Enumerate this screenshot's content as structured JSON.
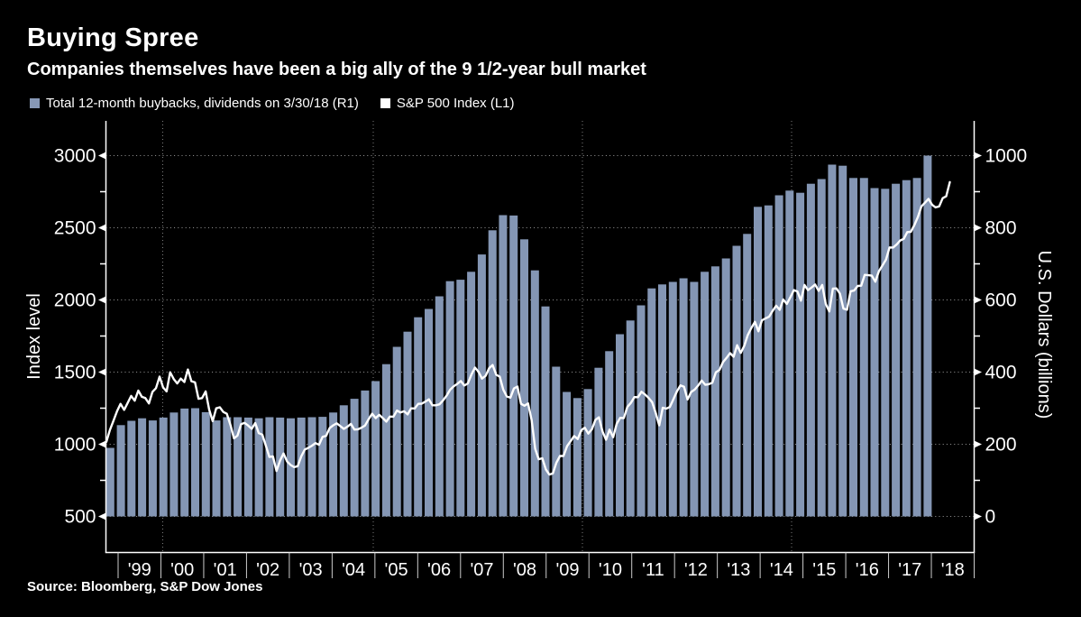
{
  "header": {
    "title": "Buying Spree",
    "subtitle": "Companies themselves have been a big ally of the 9 1/2-year bull market"
  },
  "legend": {
    "items": [
      {
        "label": "Total 12-month buybacks, dividends on 3/30/18 (R1)",
        "swatch_color": "#8798b6"
      },
      {
        "label": "S&P 500 Index  (L1)",
        "swatch_color": "#ffffff"
      }
    ]
  },
  "source": "Source:  Bloomberg, S&P Dow Jones",
  "axes": {
    "left": {
      "label": "Index level",
      "ticks": [
        500,
        1000,
        1500,
        2000,
        2500,
        3000
      ]
    },
    "right": {
      "label": "U.S. Dollars (billions)",
      "ticks": [
        0,
        200,
        400,
        600,
        800,
        1000
      ]
    },
    "x": {
      "years": [
        "'99",
        "'00",
        "'01",
        "'02",
        "'03",
        "'04",
        "'05",
        "'06",
        "'07",
        "'08",
        "'09",
        "'10",
        "'11",
        "'12",
        "'13",
        "'14",
        "'15",
        "'16",
        "'17",
        "'18"
      ]
    }
  },
  "colors": {
    "background": "#000000",
    "text": "#ffffff",
    "bar": "#8496b4",
    "line": "#ffffff",
    "grid": "#9a9a9a",
    "grid_vertical": "#7d7d7d",
    "year_tick": "#cccccc",
    "axis": "#ffffff"
  },
  "chart_data": {
    "type": "bar+line",
    "title": "Buying Spree",
    "grid": true,
    "legend_position": "top-left",
    "left_axis_range": [
      500,
      3250
    ],
    "right_axis_range": [
      0,
      1100
    ],
    "series": [
      {
        "name": "Total 12-month buybacks, dividends on 3/30/18 (R1)",
        "type": "bar",
        "axis": "right",
        "units": "U.S. Dollars (billions)",
        "freq": "quarterly",
        "start": "1998-Q4",
        "end": "2018-Q1",
        "values": [
          190,
          253,
          265,
          272,
          266,
          274,
          288,
          299,
          300,
          289,
          266,
          275,
          275,
          274,
          272,
          275,
          274,
          272,
          274,
          275,
          276,
          288,
          308,
          326,
          349,
          375,
          422,
          470,
          512,
          552,
          575,
          610,
          652,
          656,
          678,
          726,
          793,
          835,
          834,
          768,
          682,
          582,
          415,
          345,
          328,
          353,
          412,
          458,
          505,
          543,
          585,
          632,
          643,
          650,
          660,
          650,
          678,
          693,
          715,
          750,
          783,
          858,
          862,
          890,
          903,
          897,
          922,
          935,
          975,
          972,
          938,
          938,
          910,
          908,
          922,
          932,
          938,
          1000
        ]
      },
      {
        "name": "S&P 500 Index (L1)",
        "type": "line",
        "axis": "left",
        "units": "Index level",
        "freq": "monthly",
        "start": "1998-09",
        "end": "2018-07",
        "values": [
          1017,
          1099,
          1164,
          1229,
          1280,
          1238,
          1286,
          1335,
          1302,
          1372,
          1329,
          1320,
          1283,
          1363,
          1389,
          1469,
          1394,
          1366,
          1499,
          1452,
          1421,
          1455,
          1431,
          1518,
          1437,
          1429,
          1315,
          1320,
          1366,
          1240,
          1160,
          1249,
          1256,
          1224,
          1211,
          1134,
          1041,
          1060,
          1139,
          1148,
          1130,
          1107,
          1147,
          1077,
          1067,
          990,
          912,
          916,
          815,
          886,
          936,
          880,
          856,
          841,
          848,
          917,
          964,
          975,
          990,
          1008,
          996,
          1051,
          1058,
          1112,
          1131,
          1145,
          1126,
          1107,
          1121,
          1141,
          1102,
          1104,
          1115,
          1130,
          1174,
          1212,
          1181,
          1204,
          1181,
          1157,
          1192,
          1191,
          1234,
          1220,
          1229,
          1207,
          1249,
          1248,
          1280,
          1281,
          1295,
          1311,
          1270,
          1270,
          1277,
          1304,
          1336,
          1378,
          1401,
          1418,
          1438,
          1407,
          1421,
          1482,
          1531,
          1503,
          1455,
          1474,
          1527,
          1549,
          1481,
          1468,
          1379,
          1331,
          1323,
          1386,
          1400,
          1280,
          1267,
          1283,
          1166,
          969,
          896,
          903,
          826,
          790,
          798,
          873,
          919,
          919,
          987,
          1021,
          1057,
          1036,
          1096,
          1115,
          1074,
          1104,
          1169,
          1187,
          1089,
          1031,
          1102,
          1049,
          1141,
          1183,
          1181,
          1258,
          1286,
          1327,
          1326,
          1364,
          1345,
          1321,
          1292,
          1219,
          1131,
          1253,
          1247,
          1258,
          1312,
          1366,
          1408,
          1398,
          1310,
          1362,
          1379,
          1407,
          1441,
          1412,
          1416,
          1426,
          1498,
          1515,
          1569,
          1598,
          1631,
          1606,
          1686,
          1633,
          1682,
          1757,
          1806,
          1848,
          1783,
          1859,
          1872,
          1884,
          1924,
          1960,
          1931,
          2003,
          1972,
          2018,
          2068,
          2059,
          1995,
          2104,
          2068,
          2086,
          2107,
          2063,
          2104,
          1972,
          1920,
          2079,
          2080,
          2044,
          1940,
          1932,
          2060,
          2065,
          2097,
          2099,
          2174,
          2171,
          2168,
          2126,
          2199,
          2239,
          2279,
          2364,
          2363,
          2384,
          2412,
          2423,
          2470,
          2472,
          2519,
          2575,
          2648,
          2674,
          2700,
          2660,
          2641,
          2648,
          2705,
          2718,
          2816
        ]
      }
    ]
  }
}
